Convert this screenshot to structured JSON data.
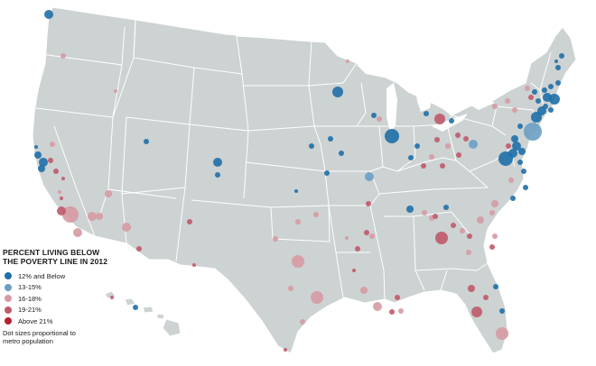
{
  "legend": {
    "title_line1": "PERCENT LIVING BELOW",
    "title_line2": "THE POVERTY LINE IN 2012",
    "categories": [
      {
        "label": "12% and Below",
        "color": "#1f6fa8"
      },
      {
        "label": "13-15%",
        "color": "#6c9ec3"
      },
      {
        "label": "16-18%",
        "color": "#d69aa3"
      },
      {
        "label": "19-21%",
        "color": "#c0596a"
      },
      {
        "label": "Above 21%",
        "color": "#b8202f"
      }
    ],
    "note_line1": "Dot sizes proportional to",
    "note_line2": "metro population"
  }
}
